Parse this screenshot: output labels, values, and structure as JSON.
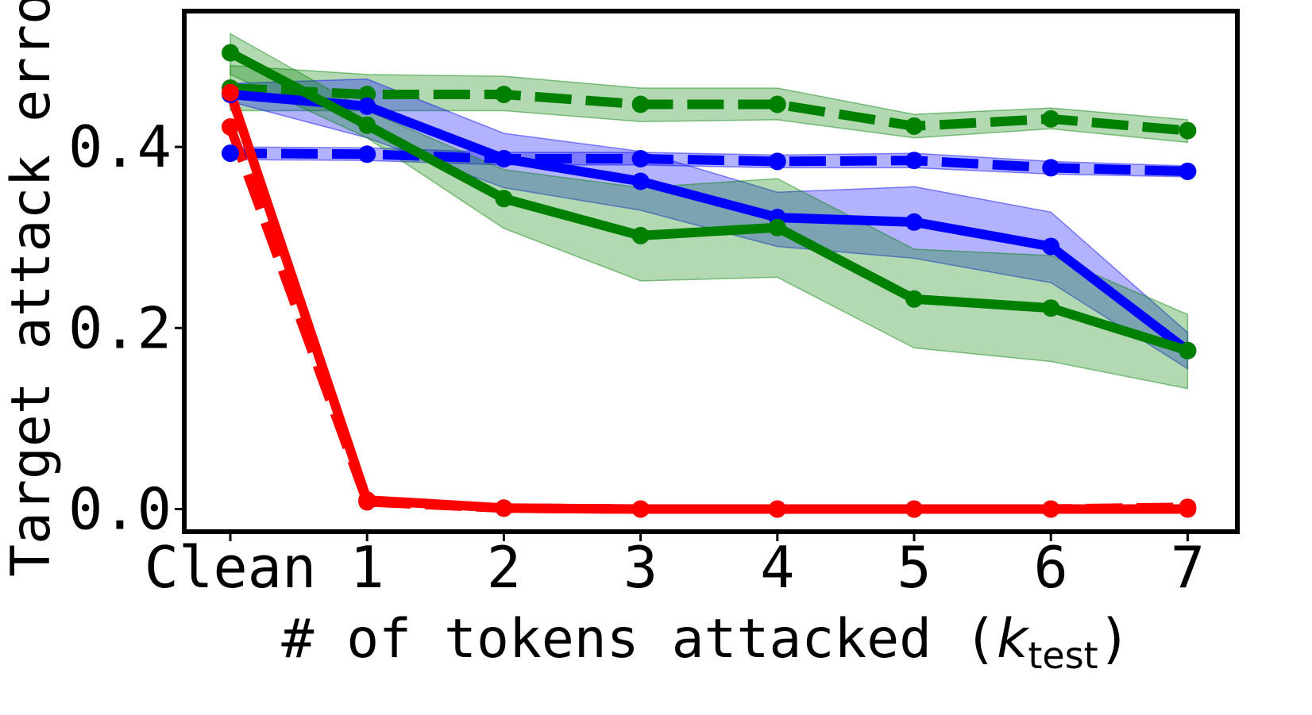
{
  "chart_data": {
    "type": "line",
    "xlabel_main": "# of tokens attacked (",
    "xlabel_var": "k",
    "xlabel_sub": "test",
    "xlabel_close": ")",
    "ylabel": "Target attack error",
    "categories": [
      "Clean",
      "1",
      "2",
      "3",
      "4",
      "5",
      "6",
      "7"
    ],
    "ylim": [
      -0.025,
      0.55
    ],
    "yticks": [
      {
        "value": 0.0,
        "label": "0.0"
      },
      {
        "value": 0.2,
        "label": "0.2"
      },
      {
        "value": 0.4,
        "label": "0.4"
      }
    ],
    "grid": false,
    "legend": "none",
    "series": [
      {
        "color": "#008000",
        "dashed": true,
        "values": [
          0.465,
          0.458,
          0.458,
          0.447,
          0.447,
          0.423,
          0.431,
          0.418
        ],
        "lower": [
          0.44,
          0.44,
          0.44,
          0.428,
          0.43,
          0.41,
          0.42,
          0.405
        ],
        "upper": [
          0.49,
          0.48,
          0.478,
          0.465,
          0.465,
          0.436,
          0.443,
          0.43
        ]
      },
      {
        "color": "#0000ff",
        "dashed": true,
        "values": [
          0.393,
          0.392,
          0.387,
          0.387,
          0.384,
          0.385,
          0.377,
          0.373
        ],
        "lower": [
          0.386,
          0.385,
          0.38,
          0.38,
          0.377,
          0.377,
          0.37,
          0.367
        ],
        "upper": [
          0.4,
          0.399,
          0.394,
          0.394,
          0.391,
          0.393,
          0.384,
          0.379
        ]
      },
      {
        "color": "#0000ff",
        "dashed": false,
        "values": [
          0.458,
          0.445,
          0.387,
          0.362,
          0.322,
          0.317,
          0.29,
          0.175
        ],
        "lower": [
          0.45,
          0.41,
          0.355,
          0.33,
          0.29,
          0.277,
          0.25,
          0.155
        ],
        "upper": [
          0.47,
          0.475,
          0.415,
          0.395,
          0.35,
          0.356,
          0.328,
          0.195
        ]
      },
      {
        "color": "#008000",
        "dashed": false,
        "values": [
          0.504,
          0.424,
          0.343,
          0.302,
          0.311,
          0.232,
          0.222,
          0.175
        ],
        "lower": [
          0.48,
          0.41,
          0.31,
          0.252,
          0.256,
          0.178,
          0.163,
          0.133
        ],
        "upper": [
          0.525,
          0.44,
          0.375,
          0.355,
          0.365,
          0.287,
          0.28,
          0.215
        ]
      },
      {
        "color": "#ff0000",
        "dashed": true,
        "values": [
          0.422,
          0.008,
          0.001,
          0.0,
          0.0,
          0.0,
          0.0,
          0.002
        ],
        "lower": null,
        "upper": null
      },
      {
        "color": "#ff0000",
        "dashed": false,
        "values": [
          0.46,
          0.01,
          0.001,
          0.0,
          0.0,
          0.0,
          0.0,
          0.0
        ],
        "lower": null,
        "upper": null
      }
    ]
  }
}
